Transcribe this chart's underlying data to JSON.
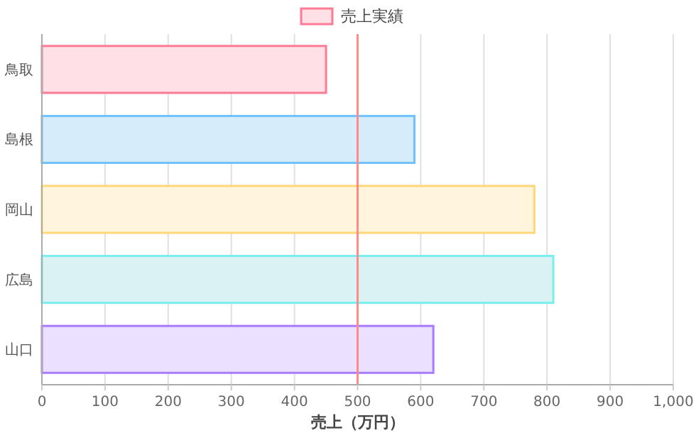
{
  "chart_data": {
    "type": "bar",
    "orientation": "horizontal",
    "xlabel": "売上（万円）",
    "categories": [
      "鳥取",
      "島根",
      "岡山",
      "広島",
      "山口"
    ],
    "series": [
      {
        "name": "売上実績",
        "colors": [
          "#ffe0e6",
          "#d7ecfb",
          "#fff5dd",
          "#dbf2f2",
          "#ebe0ff"
        ],
        "values": [
          450,
          590,
          780,
          810,
          620
        ]
      }
    ],
    "xlim": [
      0,
      1000
    ],
    "xticks": [
      0,
      100,
      200,
      300,
      400,
      500,
      600,
      700,
      800,
      900,
      {
        "value": 1000,
        "label": "1,000"
      }
    ],
    "grid": "x",
    "legend": "top",
    "ref_lines": [
      {
        "axis": "x",
        "value": 500,
        "color": "#ff8a8a"
      }
    ]
  }
}
